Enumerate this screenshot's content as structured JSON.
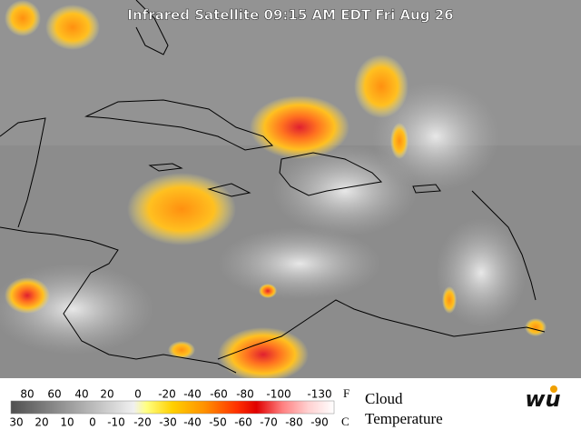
{
  "title": "Infrared Satellite 09:15 AM EDT Fri Aug 26",
  "legend": {
    "fahrenheit_labels": [
      "80",
      "60",
      "40",
      "20",
      "0",
      "-20",
      "-40",
      "-60",
      "-80",
      "-100",
      "-130"
    ],
    "fahrenheit_unit": "F",
    "celsius_labels": [
      "30",
      "20",
      "10",
      "0",
      "-10",
      "-20",
      "-30",
      "-40",
      "-50",
      "-60",
      "-70",
      "-80",
      "-90"
    ],
    "celsius_unit": "C",
    "caption_line1": "Cloud",
    "caption_line2": "Temperature"
  },
  "logo": "wu"
}
